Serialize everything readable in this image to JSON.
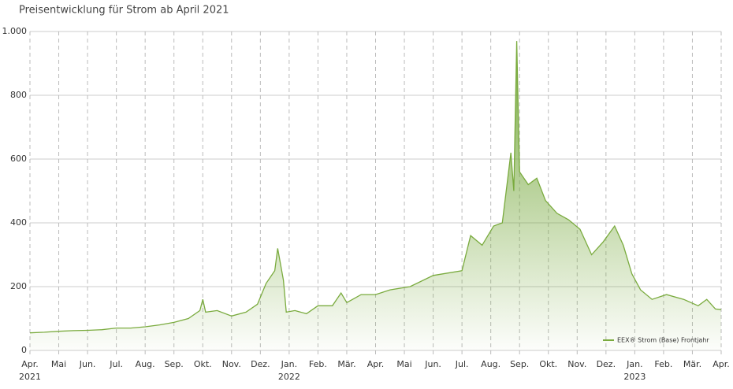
{
  "chart_data": {
    "type": "area",
    "title": "Preisentwicklung für Strom ab April 2021",
    "x": [
      0,
      0.5,
      1,
      1.5,
      2,
      2.5,
      3,
      3.5,
      4,
      4.5,
      5,
      5.5,
      5.9,
      6.0,
      6.1,
      6.5,
      7,
      7.5,
      7.9,
      8.2,
      8.5,
      8.6,
      8.8,
      8.9,
      9.2,
      9.6,
      10,
      10.5,
      10.8,
      11,
      11.5,
      12,
      12.5,
      13.2,
      14,
      15,
      15.3,
      15.7,
      16.1,
      16.4,
      16.7,
      16.8,
      16.9,
      17,
      17.3,
      17.6,
      17.9,
      18.3,
      18.7,
      19.1,
      19.5,
      19.9,
      20.3,
      20.6,
      20.9,
      21.2,
      21.6,
      22.1,
      22.7,
      23.2,
      23.5,
      23.8,
      24
    ],
    "series": [
      {
        "name": "EEX® Strom (Base) Frontjahr",
        "color": "#7aab3e",
        "values": [
          55,
          57,
          60,
          62,
          63,
          65,
          70,
          70,
          74,
          80,
          88,
          100,
          125,
          160,
          120,
          125,
          108,
          120,
          145,
          210,
          250,
          320,
          220,
          120,
          125,
          115,
          140,
          140,
          180,
          150,
          175,
          175,
          190,
          200,
          235,
          250,
          360,
          330,
          390,
          400,
          620,
          500,
          970,
          560,
          520,
          540,
          470,
          430,
          410,
          380,
          300,
          340,
          390,
          330,
          240,
          190,
          160,
          175,
          160,
          140,
          160,
          130,
          128
        ]
      }
    ],
    "xlim": [
      0,
      24
    ],
    "xticks": [
      {
        "value": 0,
        "label": "Apr."
      },
      {
        "value": 1,
        "label": "Mai"
      },
      {
        "value": 2,
        "label": "Jun."
      },
      {
        "value": 3,
        "label": "Jul."
      },
      {
        "value": 4,
        "label": "Aug."
      },
      {
        "value": 5,
        "label": "Sep."
      },
      {
        "value": 6,
        "label": "Okt."
      },
      {
        "value": 7,
        "label": "Nov."
      },
      {
        "value": 8,
        "label": "Dez."
      },
      {
        "value": 9,
        "label": "Jan."
      },
      {
        "value": 10,
        "label": "Feb."
      },
      {
        "value": 11,
        "label": "Mär."
      },
      {
        "value": 12,
        "label": "Apr."
      },
      {
        "value": 13,
        "label": "Mai"
      },
      {
        "value": 14,
        "label": "Jun."
      },
      {
        "value": 15,
        "label": "Jul."
      },
      {
        "value": 16,
        "label": "Aug."
      },
      {
        "value": 17,
        "label": "Sep."
      },
      {
        "value": 18,
        "label": "Okt."
      },
      {
        "value": 19,
        "label": "Nov."
      },
      {
        "value": 20,
        "label": "Dez."
      },
      {
        "value": 21,
        "label": "Jan."
      },
      {
        "value": 22,
        "label": "Feb."
      },
      {
        "value": 23,
        "label": "Mär."
      },
      {
        "value": 24,
        "label": "Apr."
      }
    ],
    "year_labels": [
      {
        "value": 0,
        "label": "2021"
      },
      {
        "value": 9,
        "label": "2022"
      },
      {
        "value": 21,
        "label": "2023"
      }
    ],
    "ylim": [
      0,
      1000
    ],
    "yticks": [
      0,
      200,
      400,
      600,
      800,
      {
        "value": 1000,
        "label": "1.000"
      }
    ],
    "grid": true,
    "legend": "bottom-right"
  }
}
